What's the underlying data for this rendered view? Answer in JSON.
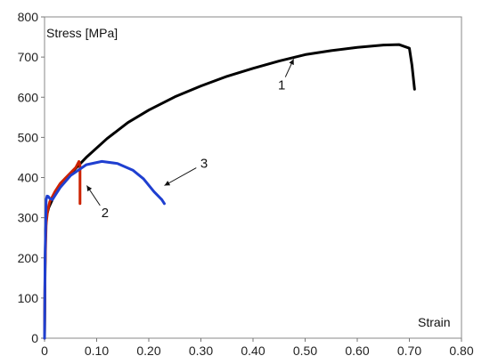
{
  "chart_data": {
    "type": "line",
    "xlabel": "Strain",
    "ylabel": "Stress [MPa]",
    "xlim": [
      0,
      0.8
    ],
    "ylim": [
      0,
      800
    ],
    "x_ticks": [
      0,
      0.1,
      0.2,
      0.3,
      0.4,
      0.5,
      0.6,
      0.7,
      0.8
    ],
    "x_tick_labels": [
      "0",
      "0.10",
      "0.20",
      "0.30",
      "0.40",
      "0.50",
      "0.60",
      "0.70",
      "0.80"
    ],
    "y_ticks": [
      0,
      100,
      200,
      300,
      400,
      500,
      600,
      700,
      800
    ],
    "y_tick_labels": [
      "0",
      "100",
      "200",
      "300",
      "400",
      "500",
      "600",
      "700",
      "800"
    ],
    "grid": false,
    "series": [
      {
        "color": "#000000",
        "x": [
          0,
          0.001,
          0.002,
          0.004,
          0.008,
          0.015,
          0.03,
          0.05,
          0.08,
          0.12,
          0.16,
          0.2,
          0.25,
          0.3,
          0.35,
          0.4,
          0.45,
          0.5,
          0.55,
          0.6,
          0.65,
          0.68,
          0.7,
          0.705,
          0.71
        ],
        "y": [
          0,
          170,
          270,
          305,
          325,
          345,
          380,
          410,
          450,
          497,
          537,
          568,
          601,
          628,
          652,
          672,
          690,
          706,
          716,
          724,
          730,
          731,
          722,
          680,
          620
        ]
      },
      {
        "color": "#cc2200",
        "x": [
          0,
          0.001,
          0.003,
          0.006,
          0.01,
          0.02,
          0.03,
          0.045,
          0.06,
          0.066,
          0.068,
          0.068
        ],
        "y": [
          0,
          180,
          285,
          318,
          340,
          365,
          385,
          405,
          425,
          440,
          430,
          335
        ]
      },
      {
        "color": "#1f3fd0",
        "x": [
          0,
          0.001,
          0.003,
          0.005,
          0.007,
          0.01,
          0.015,
          0.02,
          0.03,
          0.05,
          0.08,
          0.11,
          0.14,
          0.17,
          0.19,
          0.21,
          0.225,
          0.23
        ],
        "y": [
          0,
          200,
          345,
          354,
          353,
          348,
          345,
          355,
          375,
          405,
          432,
          440,
          435,
          418,
          397,
          365,
          345,
          335
        ]
      }
    ],
    "annotations": [
      {
        "text": "1",
        "x": 0.455,
        "y": 630,
        "arrow_to": [
          0.478,
          695
        ]
      },
      {
        "text": "2",
        "x": 0.116,
        "y": 312,
        "arrow_to": [
          0.081,
          380
        ]
      },
      {
        "text": "3",
        "x": 0.306,
        "y": 435,
        "arrow_to": [
          0.23,
          380
        ]
      }
    ]
  }
}
